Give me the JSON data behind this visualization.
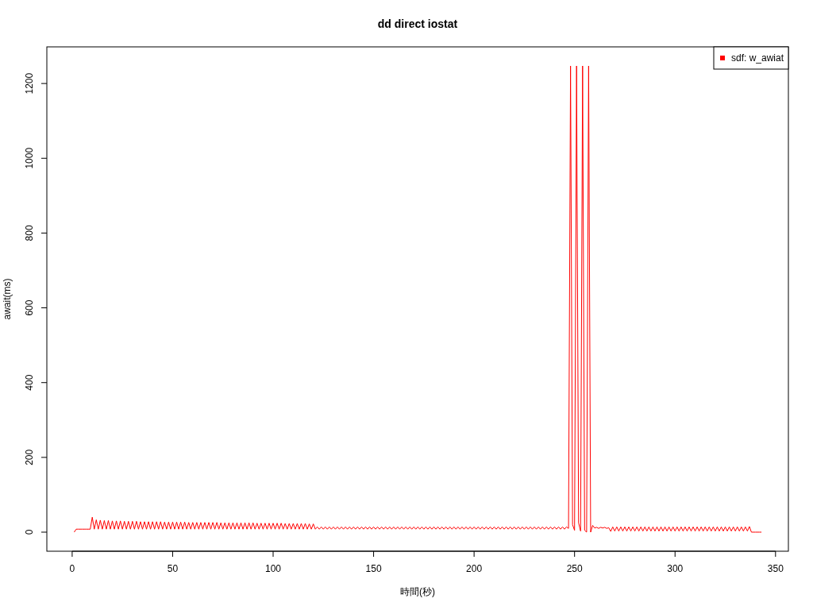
{
  "chart_data": {
    "type": "line",
    "title": "dd direct iostat",
    "xlabel": "時間(秒)",
    "ylabel": "await(ms)",
    "xlim": [
      -12.6,
      356.4
    ],
    "ylim": [
      -51,
      1298
    ],
    "xticks": [
      0,
      50,
      100,
      150,
      200,
      250,
      300,
      350
    ],
    "yticks": [
      0,
      200,
      400,
      600,
      800,
      1000,
      1200
    ],
    "grid": false,
    "legend": "top right",
    "series": [
      {
        "name": "sdf: w_awiat",
        "color": "#ff0000",
        "x": [
          1,
          2,
          3,
          4,
          5,
          6,
          7,
          8,
          9,
          10,
          11,
          12,
          13,
          14,
          15,
          16,
          17,
          18,
          19,
          20,
          21,
          22,
          23,
          24,
          25,
          26,
          27,
          28,
          29,
          30,
          31,
          32,
          33,
          34,
          35,
          36,
          37,
          38,
          39,
          40,
          41,
          42,
          43,
          44,
          45,
          46,
          47,
          48,
          49,
          50,
          51,
          52,
          53,
          54,
          55,
          56,
          57,
          58,
          59,
          60,
          61,
          62,
          63,
          64,
          65,
          66,
          67,
          68,
          69,
          70,
          71,
          72,
          73,
          74,
          75,
          76,
          77,
          78,
          79,
          80,
          81,
          82,
          83,
          84,
          85,
          86,
          87,
          88,
          89,
          90,
          91,
          92,
          93,
          94,
          95,
          96,
          97,
          98,
          99,
          100,
          101,
          102,
          103,
          104,
          105,
          106,
          107,
          108,
          109,
          110,
          111,
          112,
          113,
          114,
          115,
          116,
          117,
          118,
          119,
          120,
          121,
          122,
          123,
          124,
          125,
          126,
          127,
          128,
          129,
          130,
          131,
          132,
          133,
          134,
          135,
          136,
          137,
          138,
          139,
          140,
          141,
          142,
          143,
          144,
          145,
          146,
          147,
          148,
          149,
          150,
          151,
          152,
          153,
          154,
          155,
          156,
          157,
          158,
          159,
          160,
          161,
          162,
          163,
          164,
          165,
          166,
          167,
          168,
          169,
          170,
          171,
          172,
          173,
          174,
          175,
          176,
          177,
          178,
          179,
          180,
          181,
          182,
          183,
          184,
          185,
          186,
          187,
          188,
          189,
          190,
          191,
          192,
          193,
          194,
          195,
          196,
          197,
          198,
          199,
          200,
          201,
          202,
          203,
          204,
          205,
          206,
          207,
          208,
          209,
          210,
          211,
          212,
          213,
          214,
          215,
          216,
          217,
          218,
          219,
          220,
          221,
          222,
          223,
          224,
          225,
          226,
          227,
          228,
          229,
          230,
          231,
          232,
          233,
          234,
          235,
          236,
          237,
          238,
          239,
          240,
          241,
          242,
          243,
          244,
          245,
          246,
          247,
          248,
          249,
          250,
          251,
          252,
          253,
          254,
          255,
          256,
          257,
          258,
          259,
          260,
          261,
          262,
          263,
          264,
          265,
          266,
          267,
          268,
          269,
          270,
          271,
          272,
          273,
          274,
          275,
          276,
          277,
          278,
          279,
          280,
          281,
          282,
          283,
          284,
          285,
          286,
          287,
          288,
          289,
          290,
          291,
          292,
          293,
          294,
          295,
          296,
          297,
          298,
          299,
          300,
          301,
          302,
          303,
          304,
          305,
          306,
          307,
          308,
          309,
          310,
          311,
          312,
          313,
          314,
          315,
          316,
          317,
          318,
          319,
          320,
          321,
          322,
          323,
          324,
          325,
          326,
          327,
          328,
          329,
          330,
          331,
          332,
          333,
          334,
          335,
          336,
          337,
          338,
          339,
          340,
          341,
          342,
          343
        ],
        "values": [
          0,
          8,
          8,
          8,
          8,
          8,
          8,
          8,
          8,
          40,
          8,
          33,
          8,
          32,
          8,
          31,
          8,
          31,
          8,
          30,
          8,
          30,
          8,
          30,
          8,
          29,
          8,
          29,
          8,
          29,
          8,
          29,
          8,
          28,
          8,
          28,
          8,
          28,
          8,
          28,
          8,
          28,
          8,
          28,
          8,
          27,
          8,
          27,
          8,
          27,
          8,
          27,
          8,
          27,
          8,
          27,
          8,
          26,
          8,
          26,
          8,
          26,
          8,
          26,
          8,
          26,
          8,
          26,
          8,
          26,
          8,
          26,
          8,
          25,
          8,
          25,
          8,
          25,
          8,
          25,
          8,
          25,
          8,
          25,
          8,
          25,
          8,
          25,
          8,
          25,
          8,
          24,
          8,
          24,
          8,
          24,
          8,
          24,
          8,
          24,
          8,
          24,
          8,
          24,
          8,
          23,
          8,
          23,
          8,
          23,
          8,
          23,
          8,
          23,
          8,
          23,
          8,
          22,
          8,
          22,
          8,
          14,
          8,
          14,
          8,
          14,
          8,
          14,
          8,
          14,
          8,
          14,
          8,
          14,
          8,
          14,
          8,
          14,
          8,
          14,
          8,
          14,
          8,
          14,
          8,
          14,
          8,
          14,
          8,
          14,
          8,
          14,
          8,
          14,
          8,
          14,
          8,
          14,
          8,
          14,
          8,
          14,
          8,
          14,
          8,
          14,
          8,
          14,
          8,
          14,
          8,
          14,
          8,
          14,
          8,
          14,
          8,
          14,
          8,
          14,
          8,
          14,
          8,
          14,
          8,
          14,
          8,
          14,
          8,
          14,
          8,
          14,
          8,
          14,
          8,
          14,
          8,
          14,
          8,
          14,
          8,
          14,
          8,
          14,
          8,
          14,
          8,
          14,
          8,
          14,
          8,
          14,
          8,
          14,
          8,
          14,
          8,
          14,
          8,
          14,
          8,
          14,
          8,
          14,
          8,
          14,
          8,
          14,
          8,
          14,
          8,
          14,
          8,
          14,
          8,
          14,
          8,
          14,
          8,
          14,
          8,
          14,
          8,
          14,
          8,
          14,
          10,
          1247,
          20,
          5,
          1247,
          25,
          3,
          1247,
          5,
          0,
          1247,
          0,
          18,
          11,
          13,
          10,
          13,
          11,
          13,
          10,
          12,
          2,
          14,
          3,
          14,
          3,
          14,
          3,
          14,
          3,
          14,
          3,
          14,
          3,
          14,
          3,
          14,
          3,
          14,
          3,
          14,
          3,
          14,
          3,
          14,
          3,
          14,
          3,
          14,
          3,
          14,
          3,
          14,
          3,
          14,
          3,
          14,
          3,
          14,
          3,
          14,
          3,
          14,
          3,
          14,
          3,
          14,
          3,
          14,
          3,
          14,
          3,
          14,
          3,
          14,
          3,
          14,
          3,
          14,
          3,
          14,
          3,
          14,
          3,
          14,
          3,
          14,
          3,
          14,
          3,
          15,
          0,
          0,
          0,
          0,
          0,
          0
        ]
      }
    ]
  }
}
